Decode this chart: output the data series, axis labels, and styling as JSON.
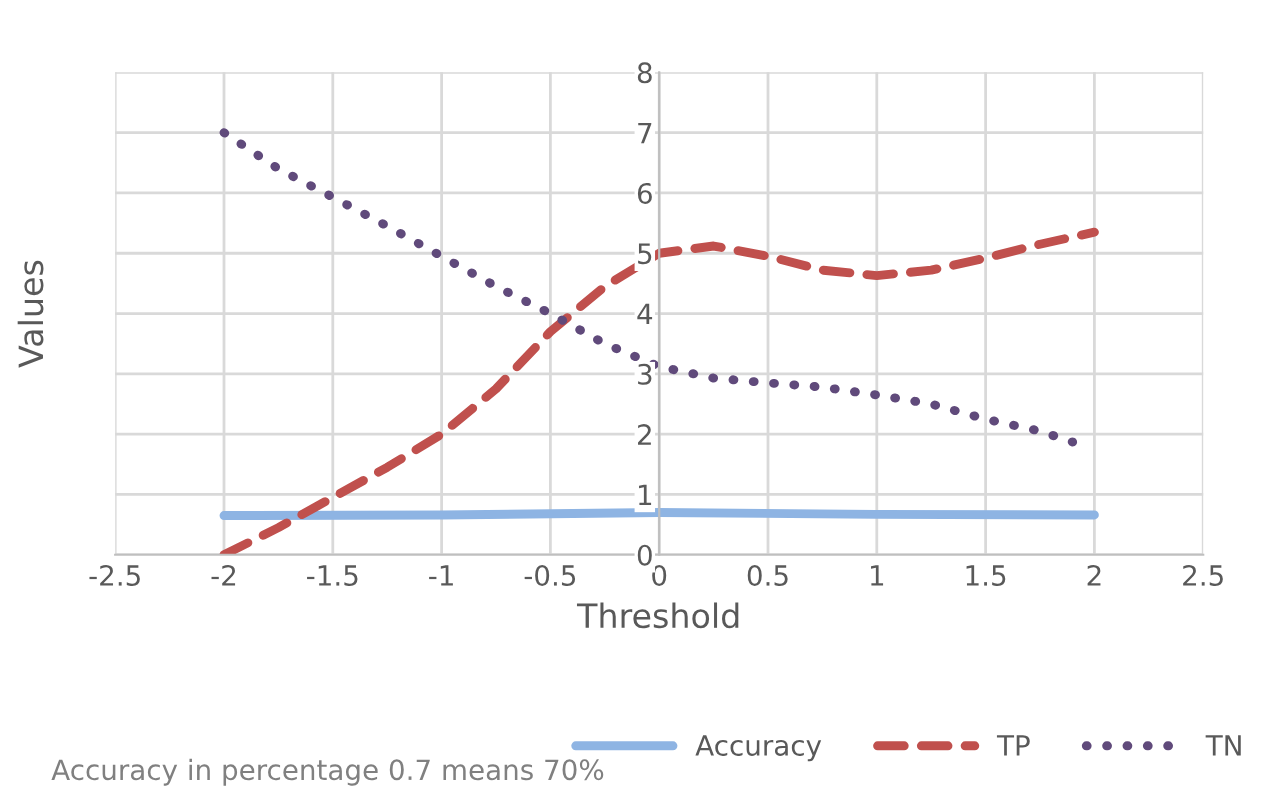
{
  "chart_data": {
    "type": "line",
    "xlabel": "Threshold",
    "ylabel": "Values",
    "xlim": [
      -2.5,
      2.5
    ],
    "xticks": [
      -2.5,
      -2,
      -1.5,
      -1,
      -0.5,
      0,
      0.5,
      1,
      1.5,
      2,
      2.5
    ],
    "ylim": [
      0,
      8
    ],
    "yticks": [
      0,
      1,
      2,
      3,
      4,
      5,
      6,
      7,
      8
    ],
    "grid": true,
    "legend": "bottom right",
    "series": [
      {
        "name": "Accuracy",
        "color": "#8eb4e3",
        "line_style": "solid",
        "x": [
          -2,
          -1,
          0,
          1,
          2
        ],
        "values": [
          0.65,
          0.66,
          0.7,
          0.67,
          0.66
        ]
      },
      {
        "name": "TP",
        "color": "#c0504d",
        "line_style": "dashed",
        "x": [
          -2,
          -1.75,
          -1.5,
          -1.25,
          -1,
          -0.75,
          -0.5,
          -0.25,
          0,
          0.25,
          0.5,
          0.75,
          1,
          1.25,
          1.5,
          1.75,
          2
        ],
        "values": [
          0,
          0.45,
          0.95,
          1.45,
          2.0,
          2.75,
          3.7,
          4.45,
          5.0,
          5.12,
          4.95,
          4.72,
          4.63,
          4.72,
          4.92,
          5.15,
          5.35
        ]
      },
      {
        "name": "TN",
        "color": "#604a7b",
        "line_style": "dotted",
        "x": [
          -2,
          -1.75,
          -1.5,
          -1.25,
          -1,
          -0.75,
          -0.5,
          -0.25,
          0,
          0.25,
          0.5,
          0.75,
          1,
          1.25,
          1.5,
          1.75,
          1.9
        ],
        "values": [
          7,
          6.4,
          5.93,
          5.45,
          4.95,
          4.45,
          4.0,
          3.5,
          3.12,
          2.93,
          2.85,
          2.78,
          2.65,
          2.5,
          2.25,
          2.05,
          1.87
        ]
      }
    ],
    "annotations": [
      "Accuracy in percentage 0.7 means 70%"
    ]
  }
}
